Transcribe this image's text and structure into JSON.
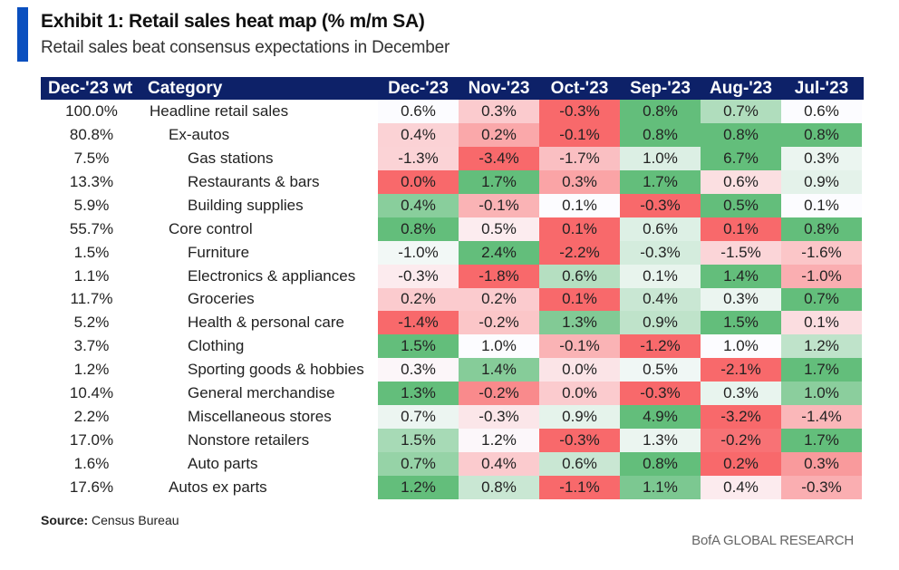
{
  "header": {
    "title": "Exhibit 1: Retail sales heat map (% m/m SA)",
    "subtitle": "Retail sales beat consensus expectations in December",
    "accent_color": "#0a4fbf"
  },
  "footer": {
    "source_label": "Source:",
    "source_text": "Census Bureau",
    "brand": "BofA GLOBAL RESEARCH"
  },
  "colors": {
    "header_bg": "#0d2168",
    "low": "#f8696b",
    "mid": "#fcfcff",
    "high": "#63be7b"
  },
  "chart_data": {
    "type": "heatmap",
    "title": "Exhibit 1: Retail sales heat map (% m/m SA)",
    "subtitle": "Retail sales beat consensus expectations in December",
    "color_scale": "per-row 3-color (red = lowest, white = middle, green = highest)",
    "columns": {
      "weight": "Dec-'23 wt",
      "category": "Category",
      "months": [
        "Dec-'23",
        "Nov-'23",
        "Oct-'23",
        "Sep-'23",
        "Aug-'23",
        "Jul-'23"
      ]
    },
    "rows": [
      {
        "weight": "100.0%",
        "category": "Headline retail sales",
        "indent": 0,
        "values": [
          0.6,
          0.3,
          -0.3,
          0.8,
          0.7,
          0.6
        ]
      },
      {
        "weight": "80.8%",
        "category": "Ex-autos",
        "indent": 1,
        "values": [
          0.4,
          0.2,
          -0.1,
          0.8,
          0.8,
          0.8
        ]
      },
      {
        "weight": "7.5%",
        "category": "Gas stations",
        "indent": 2,
        "values": [
          -1.3,
          -3.4,
          -1.7,
          1.0,
          6.7,
          0.3
        ]
      },
      {
        "weight": "13.3%",
        "category": "Restaurants & bars",
        "indent": 2,
        "values": [
          0.0,
          1.7,
          0.3,
          1.7,
          0.6,
          0.9
        ]
      },
      {
        "weight": "5.9%",
        "category": "Building supplies",
        "indent": 2,
        "values": [
          0.4,
          -0.1,
          0.1,
          -0.3,
          0.5,
          0.1
        ]
      },
      {
        "weight": "55.7%",
        "category": "Core control",
        "indent": 1,
        "values": [
          0.8,
          0.5,
          0.1,
          0.6,
          0.1,
          0.8
        ]
      },
      {
        "weight": "1.5%",
        "category": "Furniture",
        "indent": 2,
        "values": [
          -1.0,
          2.4,
          -2.2,
          -0.3,
          -1.5,
          -1.6
        ]
      },
      {
        "weight": "1.1%",
        "category": "Electronics & appliances",
        "indent": 2,
        "values": [
          -0.3,
          -1.8,
          0.6,
          0.1,
          1.4,
          -1.0
        ]
      },
      {
        "weight": "11.7%",
        "category": "Groceries",
        "indent": 2,
        "values": [
          0.2,
          0.2,
          0.1,
          0.4,
          0.3,
          0.7
        ]
      },
      {
        "weight": "5.2%",
        "category": "Health & personal care",
        "indent": 2,
        "values": [
          -1.4,
          -0.2,
          1.3,
          0.9,
          1.5,
          0.1
        ]
      },
      {
        "weight": "3.7%",
        "category": "Clothing",
        "indent": 2,
        "values": [
          1.5,
          1.0,
          -0.1,
          -1.2,
          1.0,
          1.2
        ]
      },
      {
        "weight": "1.2%",
        "category": "Sporting goods & hobbies",
        "indent": 2,
        "values": [
          0.3,
          1.4,
          0.0,
          0.5,
          -2.1,
          1.7
        ]
      },
      {
        "weight": "10.4%",
        "category": "General merchandise",
        "indent": 2,
        "values": [
          1.3,
          -0.2,
          0.0,
          -0.3,
          0.3,
          1.0
        ]
      },
      {
        "weight": "2.2%",
        "category": "Miscellaneous stores",
        "indent": 2,
        "values": [
          0.7,
          -0.3,
          0.9,
          4.9,
          -3.2,
          -1.4
        ]
      },
      {
        "weight": "17.0%",
        "category": "Nonstore retailers",
        "indent": 2,
        "values": [
          1.5,
          1.2,
          -0.3,
          1.3,
          -0.2,
          1.7
        ]
      },
      {
        "weight": "1.6%",
        "category": "Auto parts",
        "indent": 2,
        "values": [
          0.7,
          0.4,
          0.6,
          0.8,
          0.2,
          0.3
        ]
      },
      {
        "weight": "17.6%",
        "category": "Autos ex parts",
        "indent": 1,
        "values": [
          1.2,
          0.8,
          -1.1,
          1.1,
          0.4,
          -0.3
        ]
      }
    ]
  }
}
